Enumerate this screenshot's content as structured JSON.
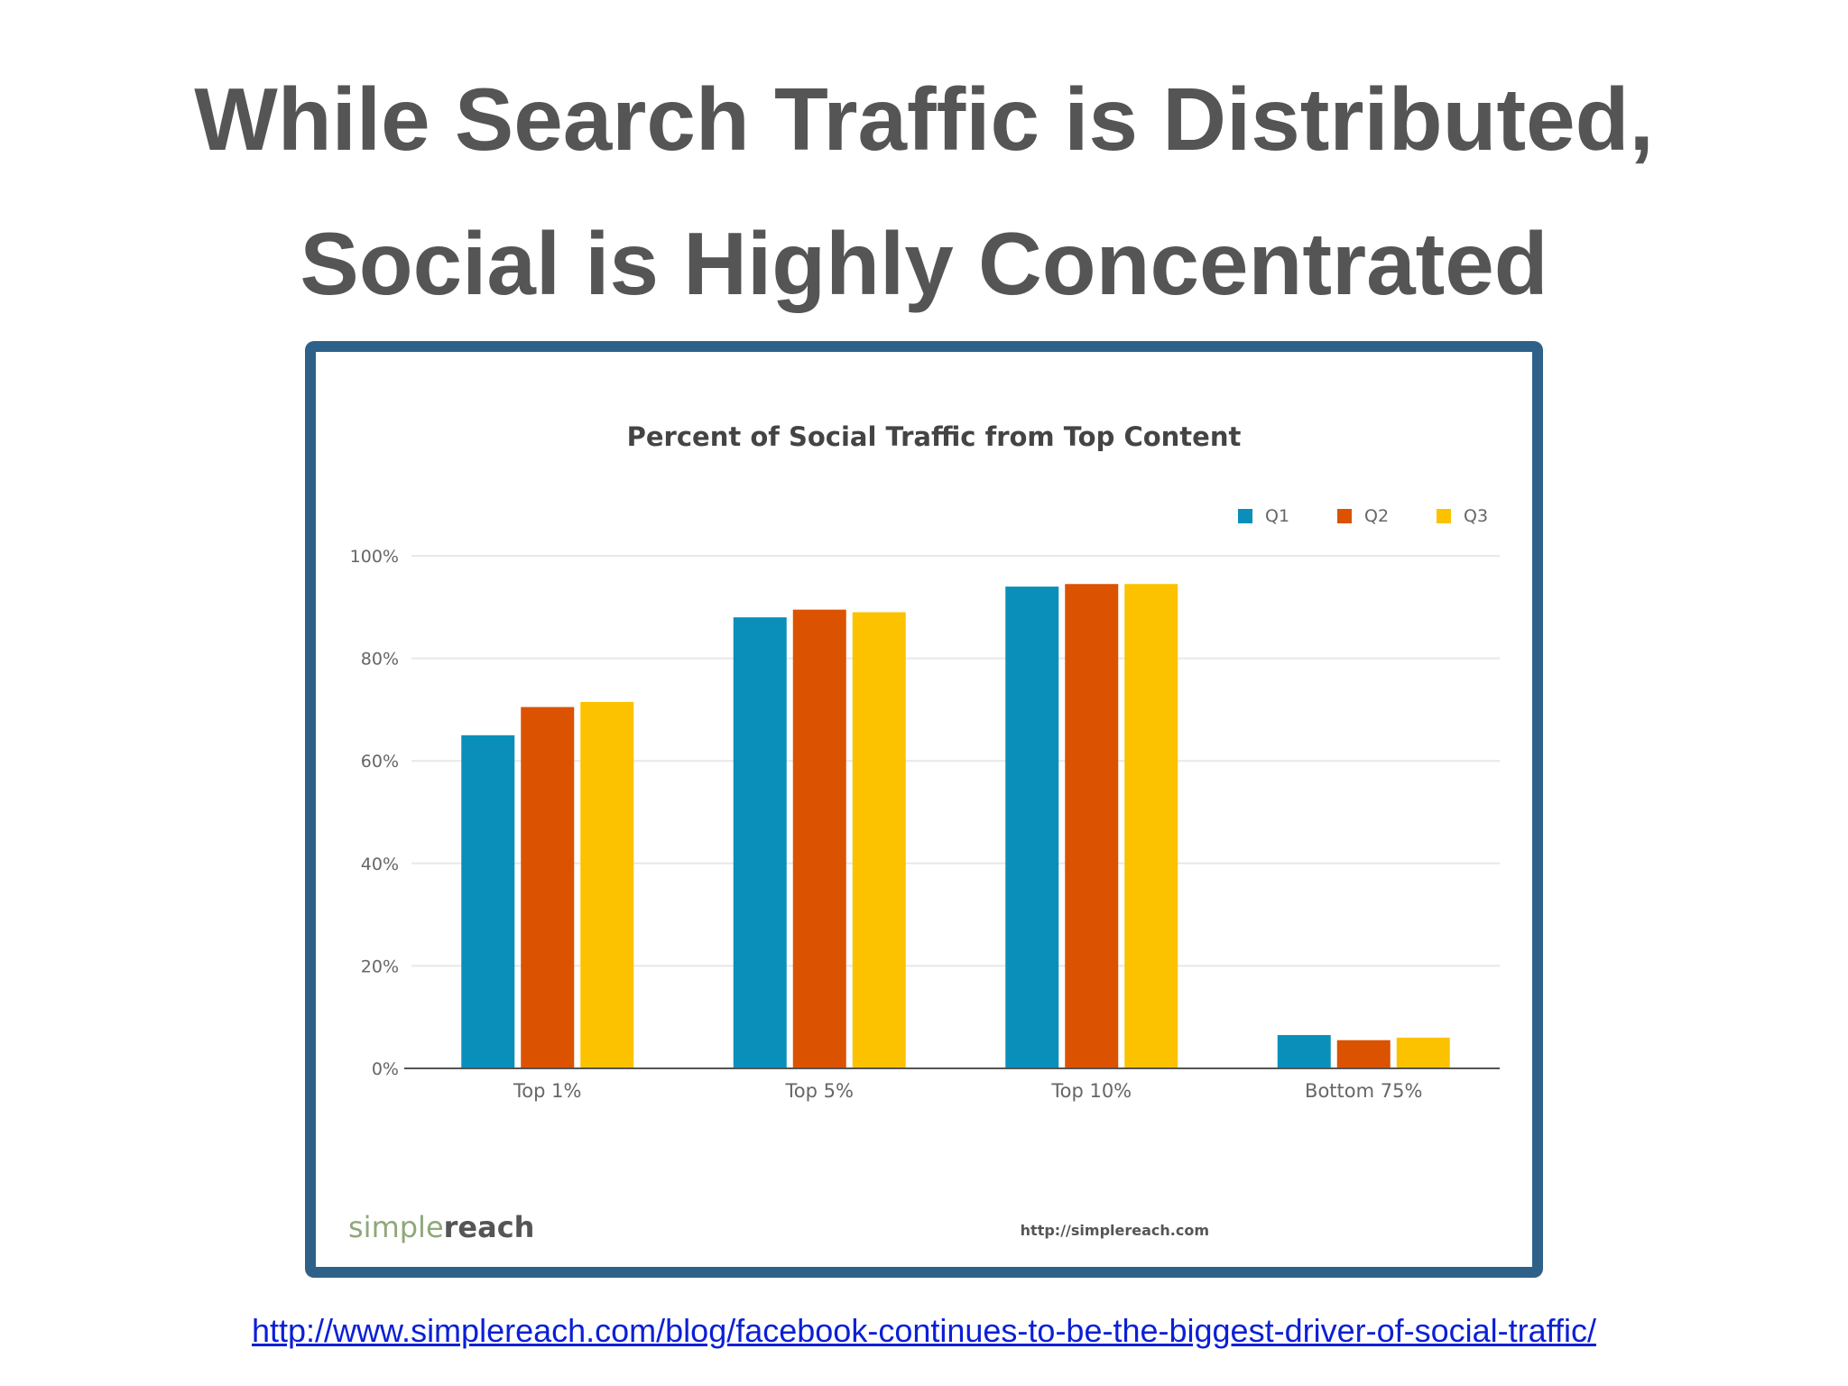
{
  "slide": {
    "title_line1": "While Search Traffic is Distributed,",
    "title_line2": "Social is Highly Concentrated",
    "source_url": "http://www.simplereach.com/blog/facebook-continues-to-be-the-biggest-driver-of-social-traffic/"
  },
  "chart_data": {
    "type": "bar",
    "title": "Percent of Social Traffic from Top Content",
    "xlabel": "",
    "ylabel": "",
    "categories": [
      "Top 1%",
      "Top 5%",
      "Top 10%",
      "Bottom 75%"
    ],
    "series": [
      {
        "name": "Q1",
        "color": "#0a8fba",
        "values": [
          65,
          88,
          94,
          6.5
        ]
      },
      {
        "name": "Q2",
        "color": "#db5200",
        "values": [
          70.5,
          89.5,
          94.5,
          5.5
        ]
      },
      {
        "name": "Q3",
        "color": "#fcc200",
        "values": [
          71.5,
          89,
          94.5,
          6
        ]
      }
    ],
    "ylim": [
      0,
      100
    ],
    "yticks": [
      "0%",
      "20%",
      "40%",
      "60%",
      "80%",
      "100%"
    ],
    "grid": true,
    "legend_position": "top-right",
    "brand_prefix": "simple",
    "brand_suffix": "reach",
    "brand_url": "http://simplereach.com"
  }
}
